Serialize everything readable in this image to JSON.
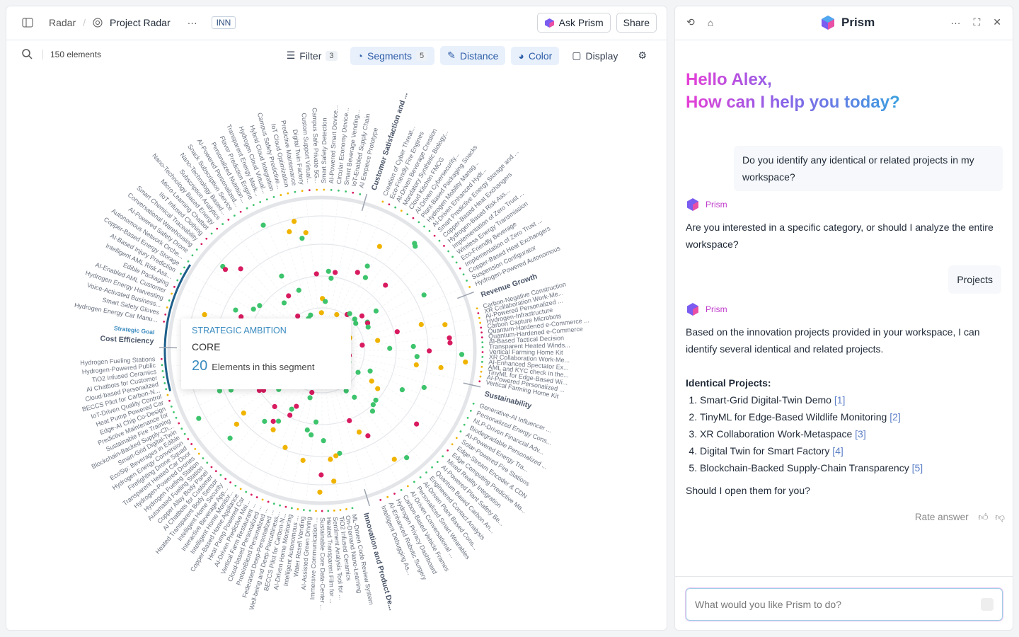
{
  "header": {
    "breadcrumb": [
      "Radar",
      "Project Radar"
    ],
    "badge": "INN",
    "buttons": [
      "Ask Prism",
      "Share"
    ]
  },
  "toolbar": {
    "count": "150 elements",
    "filter": {
      "label": "Filter",
      "count": "3"
    },
    "segments": {
      "label": "Segments",
      "count": "5"
    },
    "distance": "Distance",
    "color": "Color",
    "display": "Display"
  },
  "radar": {
    "segments": [
      {
        "name": "Customer Satisfaction and ...",
        "items": [
          "Creation of Cyber Threat...",
          "Eco-Friendly Fire Engines",
          "AI-Driven Beverage Creation",
          "Mandatory Synthetic Biology...",
          "Cloud Kitchen FMCG",
          "AI-Driven Cybersecurity...",
          "Plant-Based Packaging Snacks",
          "Hydrogen Mobility Manag...",
          "AI-Driven Enhanced Hydr...",
          "Smart Predictive Energy Storage and ...",
          "Copper-Based Heat Exchangers",
          "Hydrogen-Based Risk Ass...",
          "Implementation of Zero Trust ...",
          "Wireless Energy Transmission",
          "Eco-Friendly Beverage",
          "Implementation of Zero Trust ...",
          "Copper-Based Heat Exchangers",
          "Suspension Configurator",
          "Hydrogen-Powered Autonomous"
        ]
      },
      {
        "name": "Revenue Growth",
        "items": [
          "Carbon-Negative Construction",
          "XR Collaboration Work-Me...",
          "AI-Powered Personalized ...",
          "Hydrogen-Infrastructure",
          "Carbon Capture Microbots",
          "Quantum-Hardened e-Commerce ...",
          "Quantum-Hardened e-Commerce",
          "AI-Based Tactical Decision",
          "Transparent Heated Winds...",
          "Vertical Farming Home Kit",
          "XR Collaboration Work-Me...",
          "AI-Enhanced Spectator Ex...",
          "AML and KYC check in the...",
          "TinyML for Edge-Based Wi...",
          "AI-Powered Personalized ...",
          "Vertical Farming Home Kit"
        ]
      },
      {
        "name": "Sustainability",
        "items": [
          "Generative-AI Influencer ...",
          "Personalized Energy Cons...",
          "NLP-Driven Financial Adv...",
          "Biodegradable Personalized ...",
          "AI-Powered Energy Tra...",
          "Solar-Powered Fire Stations",
          "Edge-Stream Encoder & CDN",
          "Edge Computing Predictive Ma...",
          "Mixed Reality Integration",
          "AI-Powered Plant Safety Be...",
          "Quantum Based Carbon An...",
          "Engineered Contact Analysis",
          "AI-Driven Plant Based Cons...",
          "Personalized Smart Wearables",
          "AI-Driven Conversational ...",
          "Carbon-Based Vehicle Frames",
          "Hydrogen Privacy Dashboard",
          "AI-Enhanced Robotic Surgery",
          "Intelligent Debugging As..."
        ]
      },
      {
        "name": "Innovation and Product De...",
        "items": [
          "ML-Driven Code Review System",
          "On-Demand Nano-Learning",
          "TiO2 Infused Ceramics",
          "Sentiment Analysis Tool for ...",
          "Heated Transparent Film for ...",
          "Sustainable Core Data-Center ...",
          "Immersive Communication ...",
          "AI-Assisted Green Driving",
          "Water Resell Vending",
          "Intelligent Autonomous ...",
          "AI-Driven Home Monitoring",
          "BECCS Pilot for Carbon-N...",
          "Well-being and Deep-Percuttiness...",
          "Federated Deep-Personalized ...",
          "ProteinBlend Personalized ...",
          "Cloud-based Personalized ...",
          "Vertical Farm Restaurant ...",
          "AI-Driven Predictive Mai...",
          "Heat Pump Powered Car",
          "Copper-Based Home Appliance",
          "Intelligent Home Monitor...",
          "Interactive Beverage App...",
          "Intelligent Home Security",
          "Heated Transparent Body Sensor",
          "AI Chatbots for Customer",
          "Copper Alloy Body Panel",
          "Automated Fueling Station",
          "Hydrogen Fueling Station",
          "Hydrogen-Powered Drones",
          "Transparent Heated Car Door",
          "Firefighting Drone Squad",
          "Hydrogen Energy Conversion",
          "EcoSip: Beverages in Edible",
          "Smart-Grid Digital-Twin",
          "Blockchain-Backed Supply-Ch...",
          "Sustainable Fire Training",
          "Predictive Maintenance for",
          "Edge-AI Chip Co-Design",
          "Heat Pump Powered Car",
          "IoT-Driven Quality Control",
          "BECCS Pilot for Carbon-N...",
          "Cloud-based Personalized",
          "AI Chatbots for Customer",
          "TiO2 Infused Ceramics",
          "Hydrogen-Powered Public",
          "Hydrogen Fueling Stations"
        ]
      },
      {
        "name": "Cost Efficiency",
        "subtitle": "Strategic Goal",
        "items": [
          "Hydrogen Energy Car Manu...",
          "Smart Safety Gloves",
          "Voice-Activated Business...",
          "Hydrogen Energy Harvesting",
          "AI-Enabled AML Customer",
          "Edible Packaging",
          "Intelligent AML Risk Ass...",
          "AI-Based Injury Prediction",
          "Copper-Based Energy Storage",
          "Autonomous Network Orche...",
          "AI-Powered Safety Drone",
          "Conversational Warehousing",
          "Smart Chemical Traceability",
          "IIoT Infused Clothing",
          "Micro-Learning Chatbot",
          "Nano-Technology Based Energy",
          "Subscription Analytics",
          "Nano-Technology Based...",
          "Snack Subscription Service",
          "AI-Powered Personalized...",
          "Personalized Nutrition...",
          "Flavor Prediction Engine",
          "Transparent Energy Mark...",
          "Hydrogen Cloud Virtual...",
          "Hybrid Cloud Integration",
          "Campus Safety Predictive...",
          "IoT Cloud Optimization",
          "Predictive Maintenance",
          "Digital Twin Factory",
          "Custom Support Virtual...",
          "Campus Safe Private 5G...",
          "Smart Safety Detection",
          "AI-Powered Smart Device...",
          "Circular Economy Device...",
          "Smart Beverage Vending...",
          "IoT-Enabled Supply Chain",
          "AI Earpiece Prototype"
        ]
      }
    ],
    "tooltip": {
      "title": "STRATEGIC AMBITION",
      "subtitle": "CORE",
      "count": "20",
      "text": "Elements in this segment"
    }
  },
  "assistant": {
    "title": "Prism",
    "greeting": [
      "Hello Alex,",
      "How can I help you today?"
    ],
    "messages": [
      {
        "role": "user",
        "text": "Do you identify any identical or related projects in my workspace?"
      },
      {
        "role": "assistant",
        "name": "Prism",
        "text": "Are you interested in a specific category, or should I analyze the entire workspace?"
      },
      {
        "role": "user",
        "text": "Projects"
      }
    ],
    "answer": {
      "name": "Prism",
      "intro": "Based on the innovation projects provided in your workspace, I can identify several identical and related projects.",
      "heading": "Identical Projects:",
      "list": [
        {
          "text": "Smart-Grid Digital-Twin Demo",
          "ref": "[1]"
        },
        {
          "text": "TinyML for Edge-Based Wildlife Monitoring",
          "ref": "[2]"
        },
        {
          "text": "XR Collaboration Work-Metaspace",
          "ref": "[3]"
        },
        {
          "text": "Digital Twin for Smart Factory",
          "ref": "[4]"
        },
        {
          "text": "Blockchain-Backed Supply-Chain Transparency",
          "ref": "[5]"
        }
      ],
      "outro": "Should I open them for you?",
      "rate": "Rate answer"
    },
    "placeholder": "What would you like Prism to do?"
  }
}
